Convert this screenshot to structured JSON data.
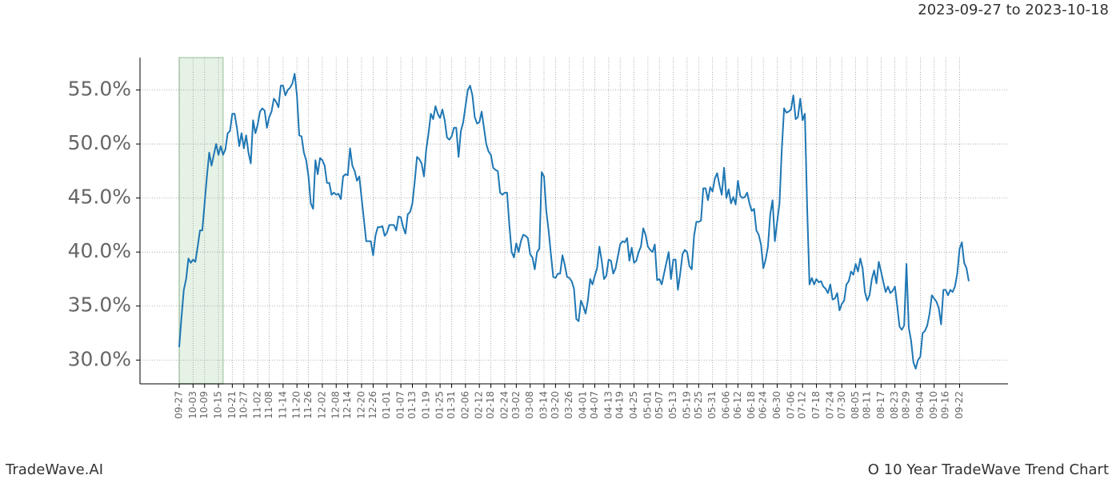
{
  "chart_data": {
    "type": "line",
    "date_range": "2023-09-27 to 2023-10-18",
    "brand": "TradeWave.AI",
    "title": "O 10 Year TradeWave Trend Chart",
    "color": "#1f77b4",
    "shaded_range": [
      0,
      19
    ],
    "grid": true,
    "ylim": [
      27.8,
      58.0
    ],
    "yticks": [
      {
        "value": 30,
        "label": "30.0%"
      },
      {
        "value": 35,
        "label": "35.0%"
      },
      {
        "value": 40,
        "label": "40.0%"
      },
      {
        "value": 45,
        "label": "45.0%"
      },
      {
        "value": 50,
        "label": "50.0%"
      },
      {
        "value": 55,
        "label": "55.0%"
      }
    ],
    "categories": [
      "09-27",
      null,
      null,
      null,
      null,
      null,
      "10-03",
      null,
      null,
      null,
      null,
      "10-09",
      null,
      null,
      null,
      null,
      null,
      "10-15",
      null,
      null,
      null,
      null,
      null,
      "10-21",
      null,
      null,
      null,
      null,
      "10-27",
      null,
      null,
      null,
      null,
      null,
      "11-02",
      null,
      null,
      null,
      null,
      "11-08",
      null,
      null,
      null,
      null,
      null,
      "11-14",
      null,
      null,
      null,
      null,
      null,
      "11-20",
      null,
      null,
      null,
      null,
      "11-26",
      null,
      null,
      null,
      null,
      null,
      "12-02",
      null,
      null,
      null,
      null,
      null,
      "12-08",
      null,
      null,
      null,
      null,
      "12-14",
      null,
      null,
      null,
      null,
      null,
      "12-20",
      null,
      null,
      null,
      null,
      "12-26",
      null,
      null,
      null,
      null,
      null,
      "01-01",
      null,
      null,
      null,
      null,
      null,
      "01-07",
      null,
      null,
      null,
      null,
      "01-13",
      null,
      null,
      null,
      null,
      null,
      "01-19",
      null,
      null,
      null,
      null,
      null,
      "01-25",
      null,
      null,
      null,
      null,
      "01-31",
      null,
      null,
      null,
      null,
      null,
      "02-06",
      null,
      null,
      null,
      null,
      null,
      "02-12",
      null,
      null,
      null,
      null,
      "02-18",
      null,
      null,
      null,
      null,
      null,
      "02-24",
      null,
      null,
      null,
      null,
      "03-02",
      null,
      null,
      null,
      null,
      null,
      "03-08",
      null,
      null,
      null,
      null,
      null,
      "03-14",
      null,
      null,
      null,
      null,
      "03-20",
      null,
      null,
      null,
      null,
      null,
      "03-26",
      null,
      null,
      null,
      null,
      null,
      "04-01",
      null,
      null,
      null,
      null,
      "04-07",
      null,
      null,
      null,
      null,
      null,
      "04-13",
      null,
      null,
      null,
      null,
      "04-19",
      null,
      null,
      null,
      null,
      null,
      "04-25",
      null,
      null,
      null,
      null,
      null,
      "05-01",
      null,
      null,
      null,
      null,
      "05-07",
      null,
      null,
      null,
      null,
      null,
      "05-13",
      null,
      null,
      null,
      null,
      null,
      "05-19",
      null,
      null,
      null,
      null,
      "05-25",
      null,
      null,
      null,
      null,
      null,
      "05-31",
      null,
      null,
      null,
      null,
      null,
      "06-06",
      null,
      null,
      null,
      null,
      "06-12",
      null,
      null,
      null,
      null,
      null,
      "06-18",
      null,
      null,
      null,
      null,
      "06-24",
      null,
      null,
      null,
      null,
      null,
      "06-30",
      null,
      null,
      null,
      null,
      null,
      "07-06",
      null,
      null,
      null,
      null,
      "07-12",
      null,
      null,
      null,
      null,
      null,
      "07-18",
      null,
      null,
      null,
      null,
      null,
      "07-24",
      null,
      null,
      null,
      null,
      "07-30",
      null,
      null,
      null,
      null,
      null,
      "08-05",
      null,
      null,
      null,
      null,
      "08-11",
      null,
      null,
      null,
      null,
      null,
      "08-17",
      null,
      null,
      null,
      null,
      null,
      "08-23",
      null,
      null,
      null,
      null,
      "08-29",
      null,
      null,
      null,
      null,
      null,
      "09-04",
      null,
      null,
      null,
      null,
      null,
      "09-10",
      null,
      null,
      null,
      null,
      "09-16",
      null,
      null,
      null,
      null,
      null,
      "09-22",
      null,
      null,
      null,
      null
    ],
    "values": [
      31.2,
      34,
      36.5,
      37.5,
      39.4,
      39,
      39.3,
      39.1,
      40.5,
      42,
      42,
      44.5,
      47,
      49.2,
      48,
      49,
      50,
      49,
      49.8,
      49,
      49.5,
      51,
      51.2,
      52.8,
      52.8,
      51.5,
      49.8,
      51,
      49.6,
      50.8,
      49.2,
      48.2,
      52.2,
      51,
      51.8,
      53,
      53.3,
      53.1,
      51.5,
      52.5,
      53,
      54.2,
      53.9,
      53.4,
      55.4,
      55.4,
      54.5,
      55,
      55.2,
      55.6,
      56.5,
      54.5,
      50.8,
      50.7,
      49.2,
      48.5,
      47,
      44.5,
      44,
      48.5,
      47.2,
      48.7,
      48.5,
      48,
      46.4,
      46.4,
      45.3,
      45.5,
      45.3,
      45.4,
      44.9,
      47,
      47.2,
      47.1,
      49.6,
      48,
      47.5,
      46.6,
      47,
      45,
      43,
      41,
      41,
      41,
      39.7,
      41.5,
      42.3,
      42.3,
      42.4,
      41.5,
      41.8,
      42.5,
      42.5,
      42.5,
      42,
      43.3,
      43.2,
      42.3,
      41.7,
      43.5,
      43.7,
      44.5,
      46.5,
      48.8,
      48.6,
      48.2,
      47,
      49.5,
      51,
      52.8,
      52.3,
      53.5,
      52.8,
      52.4,
      53.2,
      52.2,
      50.6,
      50.4,
      50.7,
      51.5,
      51.5,
      48.8,
      51.2,
      52,
      53.5,
      55,
      55.4,
      54.5,
      52.5,
      51.9,
      52,
      53,
      51.5,
      50,
      49.3,
      49,
      47.8,
      47.6,
      47.5,
      45.5,
      45.3,
      45.5,
      45.5,
      42.5,
      40,
      39.5,
      40.8,
      40,
      41,
      41.6,
      41.5,
      41.3,
      39.8,
      39.5,
      38.4,
      40,
      40.3,
      47.4,
      47,
      43.8,
      42,
      39.8,
      37.7,
      37.6,
      38,
      38,
      39.7,
      38.8,
      37.7,
      37.6,
      37.3,
      36.6,
      33.8,
      33.6,
      35.5,
      35,
      34.3,
      35.5,
      37.5,
      37,
      37.8,
      38.5,
      40.5,
      39.2,
      37.5,
      37.8,
      39.3,
      39.2,
      38,
      38.5,
      39.6,
      40.7,
      41,
      40.9,
      41.3,
      39.2,
      40.4,
      39,
      39.2,
      40,
      40.5,
      42.2,
      41.6,
      40.5,
      40.2,
      40,
      40.7,
      37.4,
      37.5,
      37,
      38,
      39,
      40,
      37.5,
      39.3,
      39.3,
      36.5,
      38,
      39.8,
      40.2,
      40,
      38.7,
      38.4,
      41.5,
      42.8,
      42.8,
      42.9,
      45.9,
      45.9,
      44.8,
      46,
      45.6,
      46.8,
      47.3,
      46.2,
      45.3,
      47.8,
      45,
      45.8,
      44.5,
      45.1,
      44.4,
      46.6,
      45.2,
      45,
      45.1,
      45.5,
      44.5,
      43.8,
      44,
      42,
      41.6,
      40.7,
      38.5,
      39.3,
      40.5,
      43.5,
      44.8,
      41,
      42.8,
      44.5,
      49.5,
      53.3,
      52.9,
      53,
      53.2,
      54.5,
      52.3,
      52.5,
      54.2,
      52.2,
      52.8,
      44,
      37,
      37.6,
      37,
      37.5,
      37.2,
      37.3,
      36.8,
      36.6,
      36.2,
      37,
      35.6,
      35.7,
      36.2,
      34.6,
      35.2,
      35.5,
      37,
      37.3,
      38.2,
      37.9,
      38.9,
      38.2,
      39.4,
      38.5,
      36.3,
      35.5,
      36,
      37.5,
      38.3,
      37.1,
      39.1,
      38.2,
      37.2,
      36.3,
      36.8,
      36.2,
      36.4,
      36.8,
      35,
      33.1,
      32.8,
      33.2,
      38.9,
      33,
      31.8,
      29.8,
      29.2,
      30,
      30.3,
      32.5,
      32.7,
      33.2,
      34.3,
      36,
      35.7,
      35.4,
      34.8,
      33.3,
      36.5,
      36.5,
      36,
      36.5,
      36.3,
      36.8,
      38,
      40.3,
      40.9,
      39,
      38.5,
      37.3
    ]
  }
}
